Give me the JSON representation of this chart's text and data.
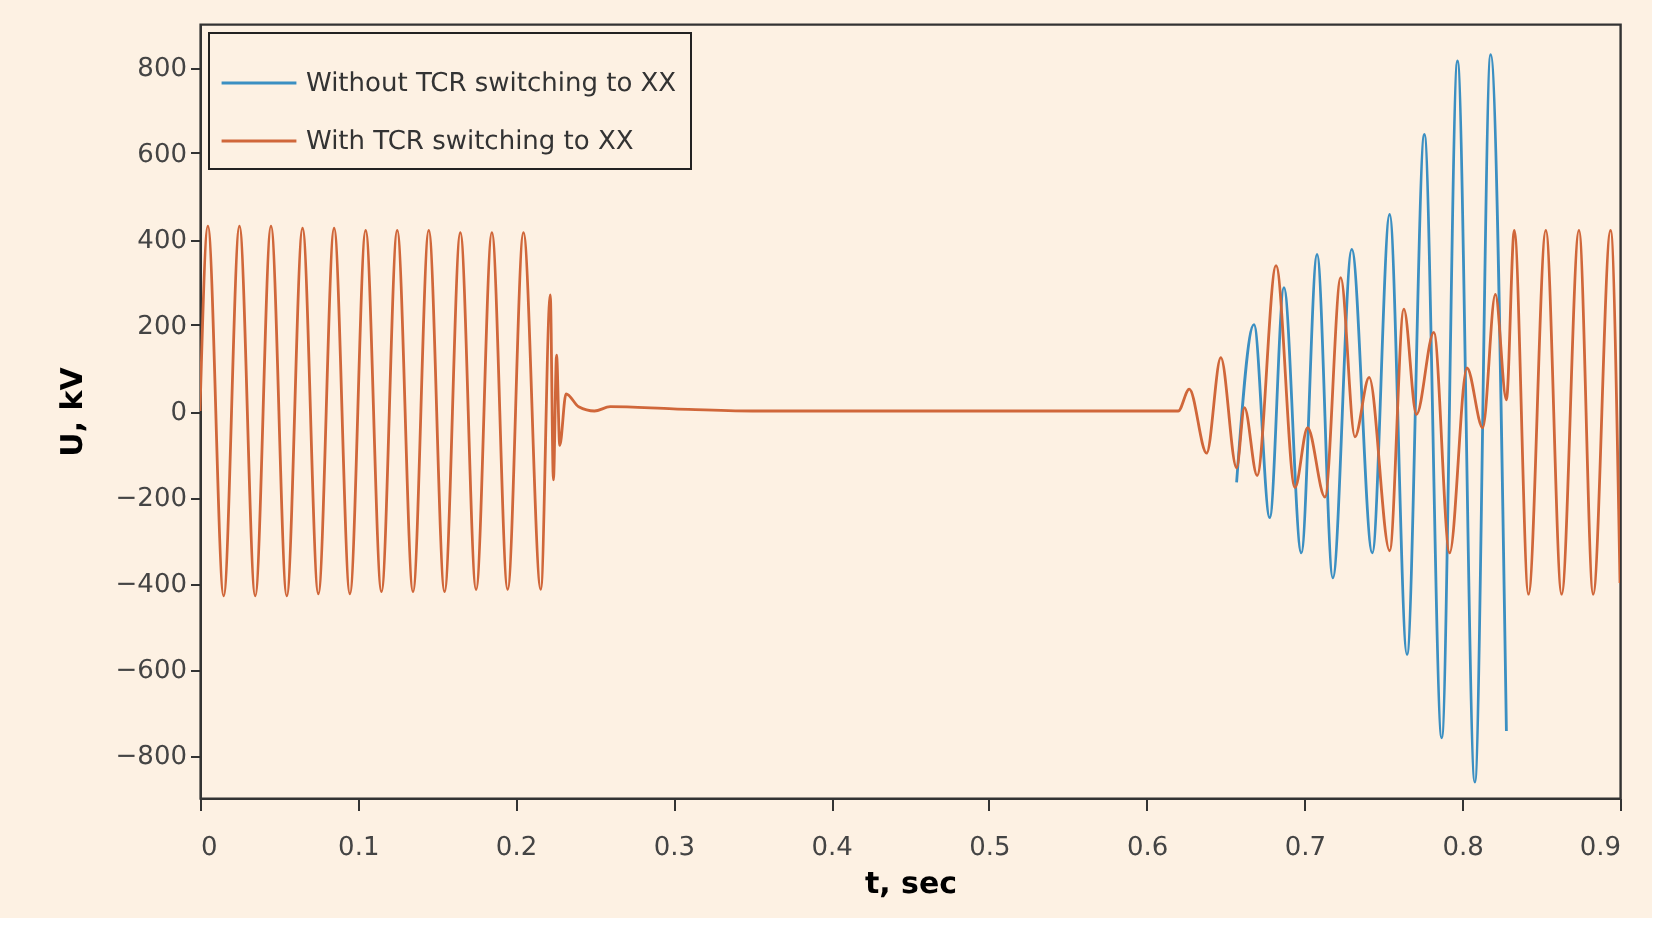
{
  "chart_data": {
    "type": "line",
    "xlabel": "t, sec",
    "ylabel": "U, kV",
    "xlim": [
      0,
      0.9
    ],
    "ylim": [
      -900,
      900
    ],
    "xticks": [
      0,
      0.1,
      0.2,
      0.3,
      0.4,
      0.5,
      0.6,
      0.7,
      0.8,
      0.9
    ],
    "yticks": [
      -800,
      -600,
      -400,
      -200,
      0,
      200,
      400,
      600,
      800
    ],
    "legend": "top left",
    "grid": false,
    "series": [
      {
        "name": "Without TCR switching to XX",
        "color": "#3b8fc2",
        "x": [
          0.657,
          0.668,
          0.678,
          0.687,
          0.698,
          0.708,
          0.718,
          0.73,
          0.743,
          0.754,
          0.765,
          0.776,
          0.787,
          0.797,
          0.808,
          0.818,
          0.828
        ],
        "values": [
          -166,
          201,
          -248,
          287,
          -330,
          364,
          -388,
          376,
          -330,
          457,
          -566,
          643,
          -760,
          814,
          -863,
          829,
          -744
        ]
      },
      {
        "name": "With TCR switching to XX",
        "color": "#d0673a",
        "x": [
          0,
          0.005,
          0.015,
          0.025,
          0.035,
          0.045,
          0.055,
          0.065,
          0.075,
          0.085,
          0.095,
          0.105,
          0.115,
          0.125,
          0.135,
          0.145,
          0.155,
          0.165,
          0.175,
          0.185,
          0.195,
          0.205,
          0.216,
          0.222,
          0.224,
          0.226,
          0.228,
          0.232,
          0.24,
          0.25,
          0.26,
          0.3,
          0.35,
          0.4,
          0.5,
          0.6,
          0.62,
          0.627,
          0.638,
          0.647,
          0.657,
          0.662,
          0.67,
          0.682,
          0.694,
          0.702,
          0.713,
          0.723,
          0.732,
          0.741,
          0.754,
          0.763,
          0.771,
          0.782,
          0.792,
          0.803,
          0.813,
          0.821,
          0.828,
          0.833,
          0.842,
          0.853,
          0.863,
          0.874,
          0.883,
          0.894,
          0.9
        ],
        "values": [
          0,
          430,
          -430,
          430,
          -430,
          430,
          -430,
          425,
          -425,
          425,
          -425,
          420,
          -420,
          420,
          -420,
          420,
          -420,
          415,
          -415,
          415,
          -415,
          415,
          -415,
          270,
          -160,
          130,
          -80,
          40,
          10,
          0,
          10,
          5,
          0,
          0,
          0,
          0,
          0,
          51,
          -98,
          124,
          -132,
          8,
          -150,
          338,
          -178,
          -39,
          -200,
          310,
          -60,
          78,
          -325,
          237,
          -8,
          183,
          -330,
          100,
          -39,
          271,
          26,
          420,
          -426,
          420,
          -426,
          420,
          -426,
          420,
          -400
        ]
      }
    ]
  }
}
